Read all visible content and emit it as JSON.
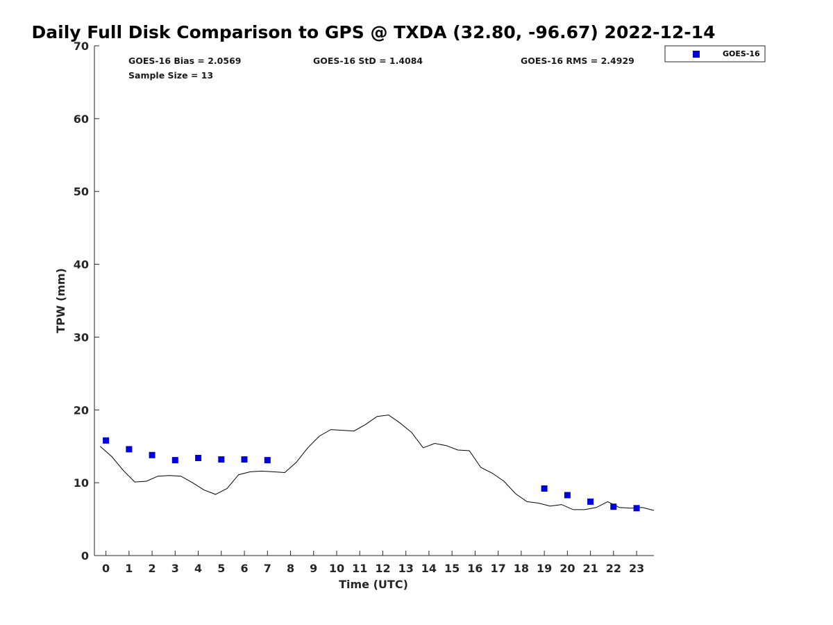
{
  "chart_data": {
    "type": "line+scatter",
    "title": "Daily Full Disk Comparison to GPS @ TXDA (32.80, -96.67) 2022-12-14",
    "xlabel": "Time (UTC)",
    "ylabel": "TPW (mm)",
    "xlim": [
      -0.5,
      23.75
    ],
    "ylim": [
      0,
      70
    ],
    "x_ticks": [
      0,
      1,
      2,
      3,
      4,
      5,
      6,
      7,
      8,
      9,
      10,
      11,
      12,
      13,
      14,
      15,
      16,
      17,
      18,
      19,
      20,
      21,
      22,
      23
    ],
    "y_ticks": [
      0,
      10,
      20,
      30,
      40,
      50,
      60,
      70
    ],
    "grid": false,
    "legend": {
      "position": "outside-top-right",
      "entries": [
        "GOES-16"
      ]
    },
    "stats": {
      "bias": "GOES-16 Bias = 2.0569",
      "std": "GOES-16 StD = 1.4084",
      "rms": "GOES-16 RMS = 2.4929",
      "sample": "Sample Size = 13"
    },
    "series": [
      {
        "type": "line",
        "color": "#000000",
        "x": [
          -0.25,
          0.25,
          0.75,
          1.25,
          1.75,
          2.25,
          2.75,
          3.25,
          3.75,
          4.25,
          4.75,
          5.25,
          5.75,
          6.25,
          6.75,
          7.25,
          7.75,
          8.25,
          8.75,
          9.25,
          9.75,
          10.25,
          10.75,
          11.25,
          11.75,
          12.25,
          12.75,
          13.25,
          13.75,
          14.25,
          14.75,
          15.25,
          15.75,
          16.25,
          16.75,
          17.25,
          17.75,
          18.25,
          18.75,
          19.25,
          19.75,
          20.25,
          20.75,
          21.25,
          21.75,
          22.25,
          22.75,
          23.25,
          23.75
        ],
        "y": [
          15.0,
          13.6,
          11.7,
          10.1,
          10.2,
          10.9,
          11.0,
          10.9,
          10.0,
          9.0,
          8.4,
          9.2,
          11.1,
          11.5,
          11.6,
          11.5,
          11.4,
          12.8,
          14.8,
          16.4,
          17.3,
          17.2,
          17.1,
          18.0,
          19.1,
          19.3,
          18.2,
          16.9,
          14.8,
          15.4,
          15.1,
          14.5,
          14.4,
          12.1,
          11.3,
          10.2,
          8.5,
          7.4,
          7.2,
          6.8,
          7.0,
          6.3,
          6.3,
          6.6,
          7.4,
          6.6,
          6.5,
          6.6,
          6.2
        ]
      },
      {
        "name": "GOES-16",
        "type": "scatter",
        "color": "#0000dd",
        "x": [
          0,
          1,
          2,
          3,
          4,
          5,
          6,
          7,
          19,
          20,
          21,
          22,
          23
        ],
        "y": [
          15.8,
          14.6,
          13.8,
          13.1,
          13.4,
          13.2,
          13.2,
          13.1,
          9.2,
          8.3,
          7.4,
          6.7,
          6.5
        ]
      }
    ]
  }
}
